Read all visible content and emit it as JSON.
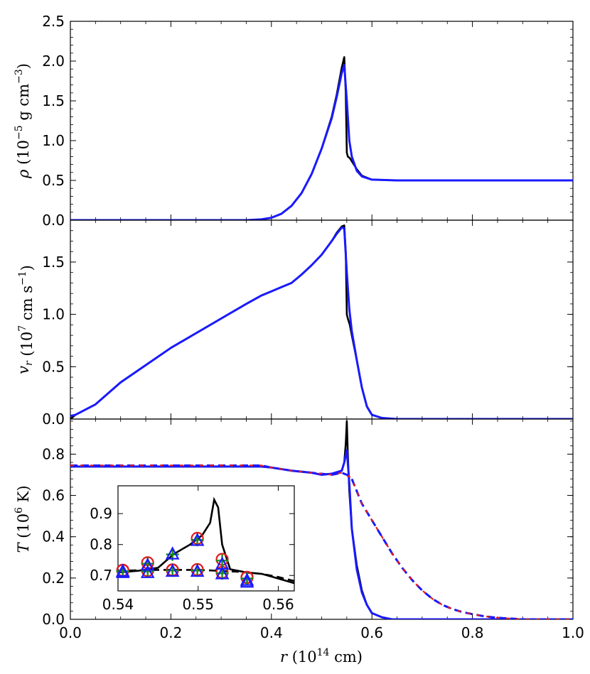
{
  "chart_data": [
    {
      "type": "line",
      "id": "density",
      "ylabel": {
        "sym": "ρ",
        "pre": " (10",
        "sup": "−5",
        "post": " g cm",
        "sup2": "−3",
        "end": ")"
      },
      "xlim": [
        0.0,
        1.0
      ],
      "ylim": [
        0.0,
        2.5
      ],
      "yticks": [
        "0.0",
        "0.5",
        "1.0",
        "1.5",
        "2.0",
        "2.5"
      ],
      "yticks_values": [
        0.0,
        0.5,
        1.0,
        1.5,
        2.0,
        2.5
      ],
      "colors": {
        "black": "#000000",
        "blue": "#1a1aff"
      },
      "series": [
        {
          "style": "black-solid",
          "x": [
            0.0,
            0.35,
            0.38,
            0.4,
            0.42,
            0.44,
            0.46,
            0.48,
            0.5,
            0.52,
            0.53,
            0.54,
            0.545,
            0.548,
            0.55,
            0.552,
            0.556,
            0.56,
            0.57,
            0.58,
            0.6,
            0.65,
            1.0
          ],
          "y": [
            0.0,
            0.0,
            0.01,
            0.03,
            0.08,
            0.18,
            0.34,
            0.58,
            0.9,
            1.3,
            1.58,
            1.92,
            2.05,
            1.6,
            0.85,
            0.8,
            0.78,
            0.74,
            0.64,
            0.56,
            0.51,
            0.5,
            0.5
          ]
        },
        {
          "style": "blue-solid",
          "x": [
            0.0,
            0.35,
            0.38,
            0.4,
            0.42,
            0.44,
            0.46,
            0.48,
            0.5,
            0.52,
            0.53,
            0.54,
            0.545,
            0.55,
            0.555,
            0.56,
            0.57,
            0.58,
            0.6,
            0.65,
            1.0
          ],
          "y": [
            0.0,
            0.0,
            0.01,
            0.03,
            0.08,
            0.18,
            0.34,
            0.58,
            0.9,
            1.28,
            1.55,
            1.85,
            1.95,
            1.5,
            1.0,
            0.8,
            0.62,
            0.55,
            0.51,
            0.5,
            0.5
          ]
        }
      ]
    },
    {
      "type": "line",
      "id": "velocity",
      "ylabel": {
        "sym": "v",
        "sub": "r",
        "pre": " (10",
        "sup": "7",
        "post": " cm s",
        "sup2": "−1",
        "end": ")"
      },
      "xlim": [
        0.0,
        1.0
      ],
      "ylim": [
        0.0,
        1.9
      ],
      "yticks": [
        "0.0",
        "0.5",
        "1.0",
        "1.5"
      ],
      "yticks_values": [
        0.0,
        0.5,
        1.0,
        1.5
      ],
      "series": [
        {
          "style": "black-solid",
          "x": [
            0.0,
            0.01,
            0.05,
            0.1,
            0.2,
            0.3,
            0.35,
            0.38,
            0.4,
            0.42,
            0.44,
            0.46,
            0.48,
            0.5,
            0.52,
            0.53,
            0.54,
            0.545,
            0.548,
            0.55,
            0.552,
            0.556,
            0.56,
            0.57,
            0.58,
            0.59,
            0.6,
            0.62,
            0.65,
            1.0
          ],
          "y": [
            0.0,
            0.04,
            0.14,
            0.35,
            0.68,
            0.96,
            1.1,
            1.18,
            1.22,
            1.26,
            1.3,
            1.38,
            1.47,
            1.57,
            1.7,
            1.78,
            1.84,
            1.85,
            1.6,
            1.0,
            0.96,
            0.9,
            0.8,
            0.56,
            0.3,
            0.12,
            0.04,
            0.01,
            0.0,
            0.0
          ]
        },
        {
          "style": "blue-solid",
          "x": [
            0.0,
            0.01,
            0.05,
            0.1,
            0.2,
            0.3,
            0.35,
            0.38,
            0.4,
            0.42,
            0.44,
            0.46,
            0.48,
            0.5,
            0.52,
            0.53,
            0.54,
            0.545,
            0.55,
            0.555,
            0.56,
            0.57,
            0.58,
            0.59,
            0.6,
            0.62,
            0.65,
            1.0
          ],
          "y": [
            0.03,
            0.04,
            0.14,
            0.35,
            0.68,
            0.96,
            1.1,
            1.18,
            1.22,
            1.26,
            1.3,
            1.38,
            1.47,
            1.57,
            1.7,
            1.77,
            1.83,
            1.82,
            1.4,
            1.05,
            0.84,
            0.56,
            0.3,
            0.12,
            0.04,
            0.01,
            0.0,
            0.0
          ]
        }
      ]
    },
    {
      "type": "line",
      "id": "temperature",
      "ylabel": {
        "sym": "T",
        "pre": " (10",
        "sup": "6",
        "post": " K)",
        "sup2": "",
        "end": ""
      },
      "xlabel": {
        "sym": "r",
        "pre": " (10",
        "sup": "14",
        "post": " cm)"
      },
      "xlim": [
        0.0,
        1.0
      ],
      "ylim": [
        0.0,
        0.97
      ],
      "xticks": [
        "0.0",
        "0.2",
        "0.4",
        "0.6",
        "0.8",
        "1.0"
      ],
      "xticks_values": [
        0.0,
        0.2,
        0.4,
        0.6,
        0.8,
        1.0
      ],
      "yticks": [
        "0.0",
        "0.2",
        "0.4",
        "0.6",
        "0.8"
      ],
      "yticks_values": [
        0.0,
        0.2,
        0.4,
        0.6,
        0.8
      ],
      "colors": {
        "black": "#000000",
        "blue": "#1a1aff",
        "red": "#e41a1c",
        "green": "#1a8a1a"
      },
      "series": [
        {
          "style": "black-solid",
          "x": [
            0.0,
            0.38,
            0.4,
            0.44,
            0.48,
            0.5,
            0.52,
            0.54,
            0.545,
            0.548,
            0.55,
            0.552,
            0.555,
            0.56,
            0.57,
            0.58,
            0.59,
            0.6,
            0.62,
            0.64,
            0.66,
            1.0
          ],
          "y": [
            0.74,
            0.74,
            0.735,
            0.72,
            0.71,
            0.7,
            0.705,
            0.72,
            0.76,
            0.85,
            0.96,
            0.8,
            0.62,
            0.44,
            0.26,
            0.14,
            0.07,
            0.03,
            0.01,
            0.0,
            0.0,
            0.0
          ]
        },
        {
          "style": "blue-solid",
          "x": [
            0.0,
            0.38,
            0.4,
            0.44,
            0.48,
            0.5,
            0.52,
            0.54,
            0.545,
            0.55,
            0.555,
            0.56,
            0.57,
            0.58,
            0.59,
            0.6,
            0.62,
            0.64,
            0.66,
            1.0
          ],
          "y": [
            0.74,
            0.74,
            0.735,
            0.72,
            0.71,
            0.7,
            0.705,
            0.72,
            0.76,
            0.82,
            0.66,
            0.44,
            0.24,
            0.13,
            0.07,
            0.03,
            0.01,
            0.0,
            0.0,
            0.0
          ]
        },
        {
          "style": "black-dashed",
          "x": [
            0.0,
            0.38,
            0.4,
            0.44,
            0.48,
            0.52,
            0.54,
            0.55,
            0.56,
            0.57,
            0.58,
            0.6,
            0.62,
            0.64,
            0.66,
            0.68,
            0.7,
            0.72,
            0.74,
            0.76,
            0.78,
            0.8,
            0.82,
            0.84,
            0.86,
            0.88,
            0.9,
            1.0
          ],
          "y": [
            0.745,
            0.745,
            0.735,
            0.72,
            0.71,
            0.7,
            0.71,
            0.7,
            0.68,
            0.62,
            0.56,
            0.48,
            0.4,
            0.32,
            0.25,
            0.19,
            0.14,
            0.1,
            0.07,
            0.05,
            0.035,
            0.025,
            0.016,
            0.01,
            0.006,
            0.003,
            0.0,
            0.0
          ]
        },
        {
          "style": "blue-dashed",
          "x": [
            0.0,
            0.38,
            0.4,
            0.44,
            0.48,
            0.52,
            0.54,
            0.55,
            0.56,
            0.57,
            0.58,
            0.6,
            0.62,
            0.64,
            0.66,
            0.68,
            0.7,
            0.72,
            0.74,
            0.76,
            0.78,
            0.8,
            0.82,
            0.84,
            0.86,
            0.88,
            0.9,
            1.0
          ],
          "y": [
            0.745,
            0.745,
            0.735,
            0.72,
            0.71,
            0.7,
            0.71,
            0.7,
            0.68,
            0.62,
            0.56,
            0.48,
            0.4,
            0.32,
            0.25,
            0.19,
            0.14,
            0.1,
            0.07,
            0.05,
            0.035,
            0.025,
            0.016,
            0.01,
            0.006,
            0.003,
            0.0,
            0.0
          ]
        },
        {
          "style": "red-dashed",
          "x": [
            0.0,
            0.38,
            0.4,
            0.44,
            0.48,
            0.52,
            0.54,
            0.55,
            0.56,
            0.57,
            0.58,
            0.6,
            0.62,
            0.64,
            0.66,
            0.68,
            0.7,
            0.72,
            0.74,
            0.76,
            0.78,
            0.8,
            0.82,
            0.84,
            0.86,
            0.88,
            0.9,
            1.0
          ],
          "y": [
            0.745,
            0.745,
            0.735,
            0.72,
            0.71,
            0.7,
            0.71,
            0.7,
            0.68,
            0.62,
            0.56,
            0.48,
            0.4,
            0.32,
            0.25,
            0.19,
            0.14,
            0.1,
            0.07,
            0.05,
            0.035,
            0.025,
            0.016,
            0.01,
            0.006,
            0.003,
            0.0,
            0.0
          ]
        }
      ],
      "inset": {
        "xlim": [
          0.54,
          0.562
        ],
        "ylim": [
          0.65,
          0.99
        ],
        "xticks": [
          "0.54",
          "0.55",
          "0.56"
        ],
        "xticks_values": [
          0.54,
          0.55,
          0.56
        ],
        "yticks": [
          "0.7",
          "0.8",
          "0.9"
        ],
        "yticks_values": [
          0.7,
          0.8,
          0.9
        ],
        "lines": [
          {
            "style": "black-solid",
            "x": [
              0.54,
              0.5425,
              0.545,
              0.547,
              0.549,
              0.5505,
              0.5515,
              0.552,
              0.5525,
              0.553,
              0.554,
              0.556,
              0.558,
              0.56,
              0.562
            ],
            "y": [
              0.71,
              0.715,
              0.725,
              0.77,
              0.8,
              0.83,
              0.87,
              0.945,
              0.92,
              0.8,
              0.72,
              0.71,
              0.705,
              0.69,
              0.675
            ]
          },
          {
            "style": "black-dashed",
            "x": [
              0.54,
              0.545,
              0.55,
              0.555,
              0.558,
              0.56,
              0.562
            ],
            "y": [
              0.715,
              0.718,
              0.718,
              0.712,
              0.705,
              0.695,
              0.682
            ]
          }
        ],
        "markers": {
          "circles_red": [
            [
              0.5406,
              0.717
            ],
            [
              0.5437,
              0.741
            ],
            [
              0.5468,
              0.718
            ],
            [
              0.5499,
              0.82
            ],
            [
              0.553,
              0.752
            ],
            [
              0.5561,
              0.693
            ]
          ],
          "circles_red_low": [
            [
              0.5406,
              0.716
            ],
            [
              0.5437,
              0.716
            ],
            [
              0.5468,
              0.717
            ],
            [
              0.5499,
              0.719
            ],
            [
              0.553,
              0.71
            ],
            [
              0.5561,
              0.694
            ]
          ],
          "plus_green": [
            [
              0.5406,
              0.714
            ],
            [
              0.5437,
              0.738
            ],
            [
              0.5468,
              0.768
            ],
            [
              0.5499,
              0.815
            ],
            [
              0.553,
              0.748
            ],
            [
              0.5561,
              0.69
            ]
          ],
          "plus_green_low": [
            [
              0.5406,
              0.713
            ],
            [
              0.5437,
              0.713
            ],
            [
              0.5468,
              0.716
            ],
            [
              0.5499,
              0.716
            ],
            [
              0.553,
              0.707
            ],
            [
              0.5561,
              0.69
            ]
          ],
          "tri_blue": [
            [
              0.5406,
              0.712
            ],
            [
              0.5437,
              0.732
            ],
            [
              0.5468,
              0.768
            ],
            [
              0.5499,
              0.812
            ],
            [
              0.553,
              0.735
            ],
            [
              0.5561,
              0.683
            ]
          ],
          "tri_blue_low": [
            [
              0.5406,
              0.708
            ],
            [
              0.5437,
              0.708
            ],
            [
              0.5468,
              0.712
            ],
            [
              0.5499,
              0.712
            ],
            [
              0.553,
              0.704
            ],
            [
              0.5561,
              0.677
            ]
          ]
        }
      }
    }
  ]
}
